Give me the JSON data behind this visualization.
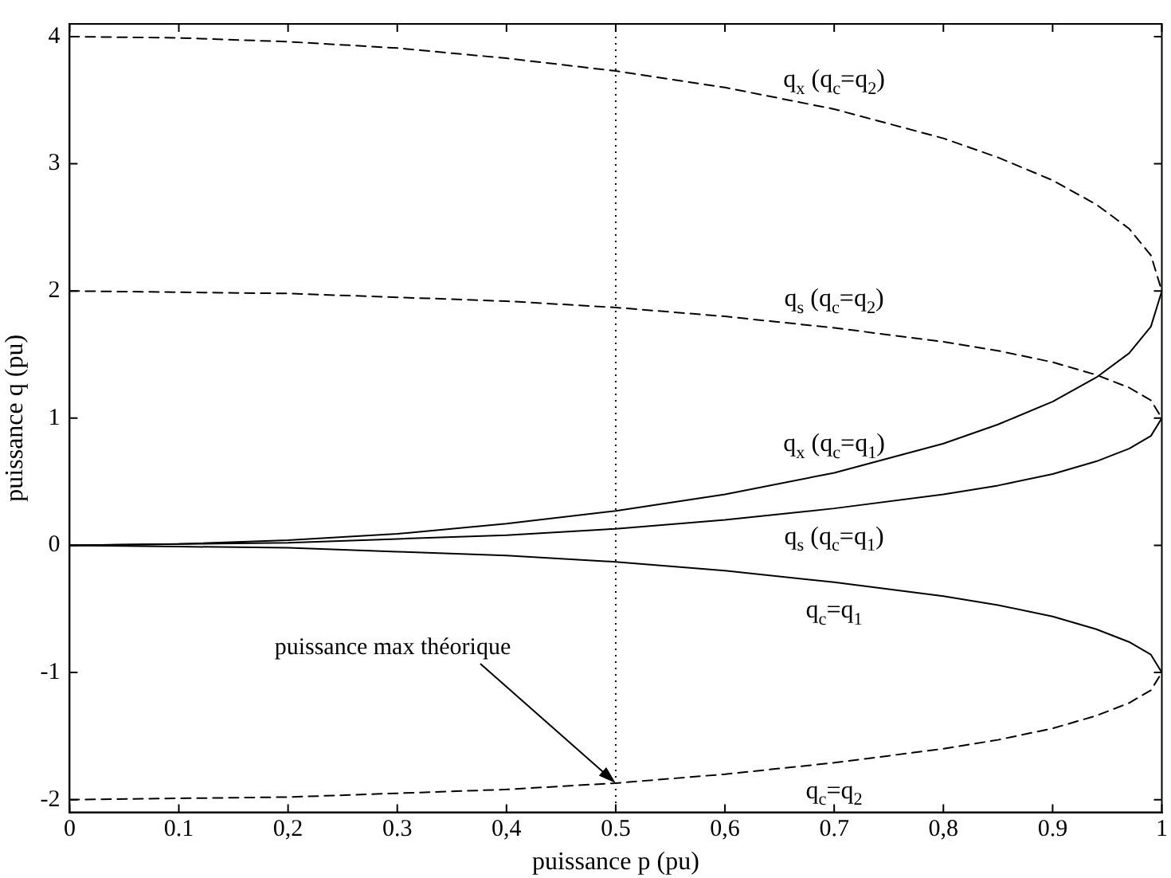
{
  "chart_data": {
    "type": "line",
    "xlabel": "puissance p (pu)",
    "ylabel": "puissance q (pu)",
    "x": [
      0,
      0.1,
      0.2,
      0.3,
      0.4,
      0.5,
      0.6,
      0.7,
      0.8,
      0.85,
      0.9,
      0.94,
      0.97,
      0.99,
      1
    ],
    "series": [
      {
        "name": "q$_{x}$ (q$_{c}$=q$_{2}$)",
        "color": "#000000",
        "line_style": "dashed",
        "values": [
          4,
          3.99,
          3.96,
          3.91,
          3.83,
          3.73,
          3.6,
          3.43,
          3.2,
          3.05,
          2.87,
          2.68,
          2.49,
          2.28,
          2
        ]
      },
      {
        "name": "q$_{s}$ (q$_{c}$=q$_{2}$)",
        "color": "#000000",
        "line_style": "dashed",
        "values": [
          2,
          1.99,
          1.98,
          1.95,
          1.92,
          1.87,
          1.8,
          1.71,
          1.6,
          1.53,
          1.44,
          1.34,
          1.24,
          1.14,
          1
        ]
      },
      {
        "name": "q$_{x}$ (q$_{c}$=q$_{1}$)",
        "color": "#000000",
        "line_style": "solid",
        "values": [
          0,
          0.01,
          0.04,
          0.09,
          0.17,
          0.27,
          0.4,
          0.57,
          0.8,
          0.95,
          1.13,
          1.32,
          1.51,
          1.72,
          2
        ]
      },
      {
        "name": "q$_{s}$ (q$_{c}$=q$_{1}$)",
        "color": "#000000",
        "line_style": "solid",
        "values": [
          0,
          0.01,
          0.02,
          0.05,
          0.08,
          0.13,
          0.2,
          0.29,
          0.4,
          0.47,
          0.56,
          0.66,
          0.76,
          0.86,
          1
        ]
      },
      {
        "name": "q$_{c}$=q$_{1}$",
        "color": "#000000",
        "line_style": "solid",
        "values": [
          0,
          -0.01,
          -0.02,
          -0.05,
          -0.08,
          -0.13,
          -0.2,
          -0.29,
          -0.4,
          -0.47,
          -0.56,
          -0.66,
          -0.76,
          -0.86,
          -1
        ]
      },
      {
        "name": "q$_{c}$=q$_{2}$",
        "color": "#000000",
        "line_style": "dashed",
        "values": [
          -2,
          -1.99,
          -1.98,
          -1.95,
          -1.92,
          -1.87,
          -1.8,
          -1.71,
          -1.6,
          -1.53,
          -1.44,
          -1.34,
          -1.24,
          -1.14,
          -1
        ]
      }
    ],
    "xlim": [
      0,
      1
    ],
    "ylim": [
      -2.1,
      4.1
    ],
    "xticks": [
      0,
      0.1,
      {
        "value": 0.2,
        "label": "0,2"
      },
      0.3,
      {
        "value": 0.4,
        "label": "0,4"
      },
      0.5,
      {
        "value": 0.6,
        "label": "0,6"
      },
      0.7,
      {
        "value": 0.8,
        "label": "0,8"
      },
      0.9,
      1
    ],
    "yticks": [
      -2,
      -1,
      0,
      1,
      2,
      3,
      4
    ],
    "ref_lines": [
      {
        "axis": "x",
        "value": 0.5,
        "color": "#000000",
        "line_style": "dotted"
      }
    ],
    "annotations": [
      {
        "text": "puissance max théorique",
        "x": 0.5,
        "y": -1.87
      }
    ],
    "grid": false,
    "legend": false,
    "marker": "none"
  }
}
